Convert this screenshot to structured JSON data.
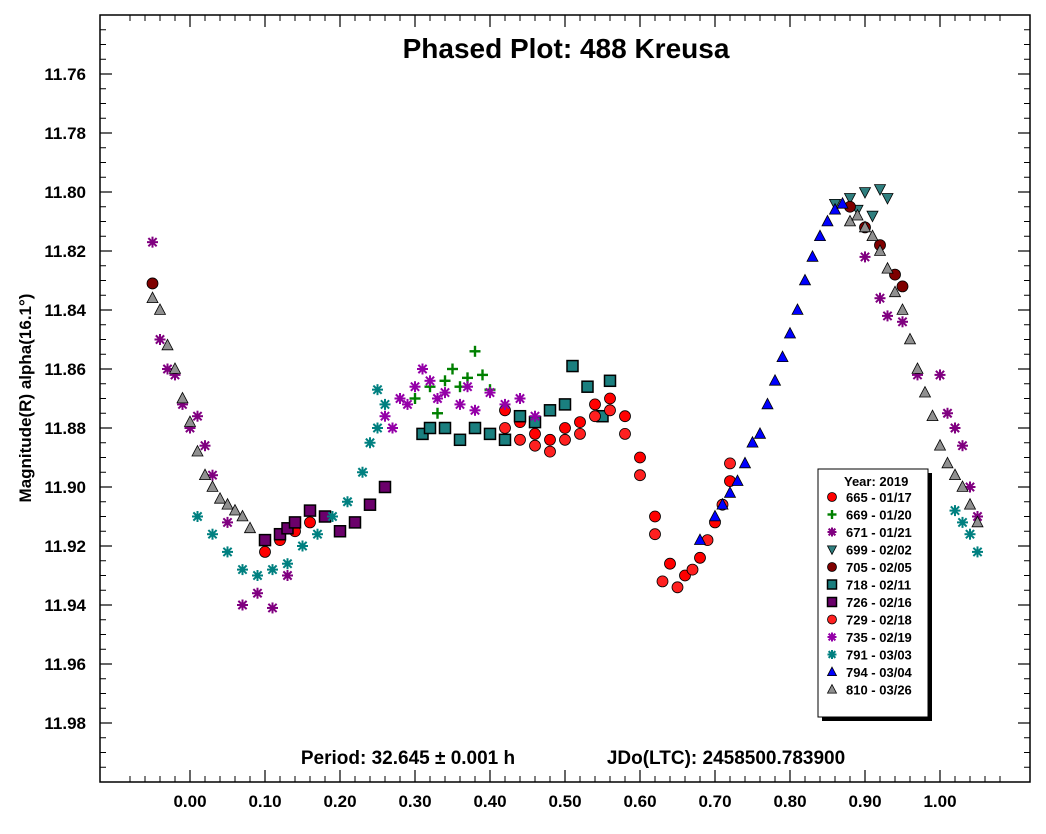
{
  "chart_data": {
    "type": "scatter",
    "title": "Phased Plot: 488 Kreusa",
    "xlabel": "",
    "ylabel": "Magnitude(R) alpha(16.1°)",
    "xlim": [
      -0.12,
      1.12
    ],
    "ylim": [
      11.74,
      12.0
    ],
    "y_inverted": true,
    "x_ticks": [
      "0.00",
      "0.10",
      "0.20",
      "0.30",
      "0.40",
      "0.50",
      "0.60",
      "0.70",
      "0.80",
      "0.90",
      "1.00"
    ],
    "y_ticks": [
      "11.76",
      "11.78",
      "11.80",
      "11.82",
      "11.84",
      "11.86",
      "11.88",
      "11.90",
      "11.92",
      "11.94",
      "11.96",
      "11.98"
    ],
    "grid": false,
    "legend_position": "bottom-right",
    "legend_title": "Year: 2019",
    "footer": {
      "period": "Period: 32.645 ± 0.001 h",
      "epoch": "JDo(LTC): 2458500.783900"
    },
    "series": [
      {
        "name": "665 - 01/17",
        "marker": "circle",
        "color": "#ff0000",
        "points": [
          [
            0.1,
            11.922
          ],
          [
            0.12,
            11.918
          ],
          [
            0.14,
            11.915
          ],
          [
            0.16,
            11.912
          ],
          [
            0.42,
            11.874
          ],
          [
            0.44,
            11.878
          ],
          [
            0.46,
            11.882
          ],
          [
            0.48,
            11.884
          ],
          [
            0.5,
            11.88
          ],
          [
            0.52,
            11.878
          ],
          [
            0.54,
            11.872
          ],
          [
            0.56,
            11.87
          ],
          [
            0.58,
            11.876
          ],
          [
            0.6,
            11.89
          ],
          [
            0.62,
            11.91
          ],
          [
            0.64,
            11.926
          ],
          [
            0.66,
            11.93
          ],
          [
            0.68,
            11.924
          ],
          [
            0.7,
            11.912
          ],
          [
            0.72,
            11.898
          ]
        ]
      },
      {
        "name": "669 - 01/20",
        "marker": "plus",
        "color": "#008000",
        "points": [
          [
            0.3,
            11.87
          ],
          [
            0.32,
            11.866
          ],
          [
            0.34,
            11.864
          ],
          [
            0.35,
            11.86
          ],
          [
            0.36,
            11.866
          ],
          [
            0.37,
            11.863
          ],
          [
            0.38,
            11.854
          ],
          [
            0.39,
            11.862
          ],
          [
            0.4,
            11.867
          ],
          [
            0.33,
            11.875
          ]
        ]
      },
      {
        "name": "671 - 01/21",
        "marker": "asterisk",
        "color": "#800080",
        "points": [
          [
            -0.05,
            11.817
          ],
          [
            -0.04,
            11.85
          ],
          [
            -0.03,
            11.86
          ],
          [
            -0.02,
            11.862
          ],
          [
            -0.01,
            11.872
          ],
          [
            0.0,
            11.88
          ],
          [
            0.01,
            11.876
          ],
          [
            0.02,
            11.886
          ],
          [
            0.03,
            11.896
          ],
          [
            0.05,
            11.912
          ],
          [
            0.07,
            11.94
          ],
          [
            0.09,
            11.936
          ],
          [
            0.11,
            11.941
          ],
          [
            0.13,
            11.93
          ],
          [
            0.9,
            11.822
          ],
          [
            0.92,
            11.836
          ],
          [
            0.93,
            11.842
          ],
          [
            0.95,
            11.844
          ],
          [
            0.97,
            11.862
          ],
          [
            1.0,
            11.862
          ],
          [
            1.01,
            11.875
          ],
          [
            1.02,
            11.88
          ],
          [
            1.03,
            11.886
          ],
          [
            1.04,
            11.9
          ],
          [
            1.05,
            11.91
          ]
        ]
      },
      {
        "name": "699 - 02/02",
        "marker": "tri-down",
        "color": "#2f7f7f",
        "points": [
          [
            0.86,
            11.804
          ],
          [
            0.88,
            11.802
          ],
          [
            0.9,
            11.8
          ],
          [
            0.92,
            11.799
          ],
          [
            0.93,
            11.802
          ],
          [
            0.91,
            11.808
          ],
          [
            0.89,
            11.806
          ]
        ]
      },
      {
        "name": "705 - 02/05",
        "marker": "circle",
        "color": "#7f0000",
        "points": [
          [
            -0.05,
            11.831
          ],
          [
            0.88,
            11.805
          ],
          [
            0.9,
            11.812
          ],
          [
            0.92,
            11.818
          ],
          [
            0.94,
            11.828
          ],
          [
            0.95,
            11.832
          ]
        ]
      },
      {
        "name": "718 - 02/11",
        "marker": "square",
        "color": "#1a7f7f",
        "points": [
          [
            0.31,
            11.882
          ],
          [
            0.32,
            11.88
          ],
          [
            0.34,
            11.88
          ],
          [
            0.36,
            11.884
          ],
          [
            0.38,
            11.88
          ],
          [
            0.4,
            11.882
          ],
          [
            0.42,
            11.884
          ],
          [
            0.44,
            11.876
          ],
          [
            0.46,
            11.878
          ],
          [
            0.48,
            11.874
          ],
          [
            0.5,
            11.872
          ],
          [
            0.51,
            11.859
          ],
          [
            0.53,
            11.866
          ],
          [
            0.55,
            11.876
          ],
          [
            0.56,
            11.864
          ]
        ]
      },
      {
        "name": "726 - 02/16",
        "marker": "square",
        "color": "#6b006b",
        "points": [
          [
            0.1,
            11.918
          ],
          [
            0.12,
            11.916
          ],
          [
            0.13,
            11.914
          ],
          [
            0.14,
            11.912
          ],
          [
            0.16,
            11.908
          ],
          [
            0.18,
            11.91
          ],
          [
            0.2,
            11.915
          ],
          [
            0.22,
            11.912
          ],
          [
            0.24,
            11.906
          ],
          [
            0.26,
            11.9
          ]
        ]
      },
      {
        "name": "729 - 02/18",
        "marker": "circle",
        "color": "#ff2020",
        "points": [
          [
            0.42,
            11.88
          ],
          [
            0.44,
            11.884
          ],
          [
            0.46,
            11.886
          ],
          [
            0.48,
            11.888
          ],
          [
            0.5,
            11.884
          ],
          [
            0.52,
            11.882
          ],
          [
            0.54,
            11.876
          ],
          [
            0.56,
            11.874
          ],
          [
            0.58,
            11.882
          ],
          [
            0.6,
            11.896
          ],
          [
            0.62,
            11.916
          ],
          [
            0.63,
            11.932
          ],
          [
            0.65,
            11.934
          ],
          [
            0.67,
            11.928
          ],
          [
            0.69,
            11.918
          ],
          [
            0.71,
            11.906
          ],
          [
            0.72,
            11.892
          ]
        ]
      },
      {
        "name": "735 - 02/19",
        "marker": "asterisk",
        "color": "#9400a8",
        "points": [
          [
            0.26,
            11.876
          ],
          [
            0.28,
            11.87
          ],
          [
            0.3,
            11.866
          ],
          [
            0.31,
            11.86
          ],
          [
            0.32,
            11.864
          ],
          [
            0.34,
            11.868
          ],
          [
            0.36,
            11.872
          ],
          [
            0.38,
            11.874
          ],
          [
            0.4,
            11.868
          ],
          [
            0.42,
            11.872
          ],
          [
            0.44,
            11.87
          ],
          [
            0.46,
            11.876
          ],
          [
            0.27,
            11.88
          ],
          [
            0.29,
            11.872
          ],
          [
            0.33,
            11.87
          ],
          [
            0.37,
            11.866
          ]
        ]
      },
      {
        "name": "791 - 03/03",
        "marker": "asterisk",
        "color": "#008080",
        "points": [
          [
            0.01,
            11.91
          ],
          [
            0.03,
            11.916
          ],
          [
            0.05,
            11.922
          ],
          [
            0.07,
            11.928
          ],
          [
            0.09,
            11.93
          ],
          [
            0.11,
            11.928
          ],
          [
            0.13,
            11.926
          ],
          [
            0.15,
            11.92
          ],
          [
            0.17,
            11.916
          ],
          [
            0.19,
            11.91
          ],
          [
            0.21,
            11.905
          ],
          [
            0.23,
            11.895
          ],
          [
            0.24,
            11.885
          ],
          [
            0.25,
            11.88
          ],
          [
            0.26,
            11.872
          ],
          [
            0.25,
            11.867
          ],
          [
            1.02,
            11.908
          ],
          [
            1.03,
            11.912
          ],
          [
            1.04,
            11.916
          ],
          [
            1.05,
            11.922
          ]
        ]
      },
      {
        "name": "794 - 03/04",
        "marker": "tri-up",
        "color": "#0000ff",
        "points": [
          [
            0.68,
            11.918
          ],
          [
            0.7,
            11.91
          ],
          [
            0.72,
            11.902
          ],
          [
            0.74,
            11.892
          ],
          [
            0.76,
            11.882
          ],
          [
            0.77,
            11.872
          ],
          [
            0.78,
            11.864
          ],
          [
            0.79,
            11.856
          ],
          [
            0.8,
            11.848
          ],
          [
            0.81,
            11.84
          ],
          [
            0.82,
            11.83
          ],
          [
            0.83,
            11.822
          ],
          [
            0.84,
            11.815
          ],
          [
            0.85,
            11.81
          ],
          [
            0.86,
            11.806
          ],
          [
            0.87,
            11.804
          ],
          [
            0.75,
            11.885
          ],
          [
            0.73,
            11.898
          ],
          [
            0.71,
            11.906
          ]
        ]
      },
      {
        "name": "810 - 03/26",
        "marker": "tri-up",
        "color": "#909090",
        "points": [
          [
            -0.05,
            11.836
          ],
          [
            -0.04,
            11.84
          ],
          [
            -0.03,
            11.852
          ],
          [
            -0.02,
            11.86
          ],
          [
            -0.01,
            11.87
          ],
          [
            0.0,
            11.878
          ],
          [
            0.01,
            11.888
          ],
          [
            0.02,
            11.896
          ],
          [
            0.03,
            11.9
          ],
          [
            0.04,
            11.904
          ],
          [
            0.05,
            11.906
          ],
          [
            0.06,
            11.908
          ],
          [
            0.07,
            11.91
          ],
          [
            0.08,
            11.914
          ],
          [
            0.88,
            11.81
          ],
          [
            0.89,
            11.808
          ],
          [
            0.9,
            11.812
          ],
          [
            0.91,
            11.815
          ],
          [
            0.92,
            11.82
          ],
          [
            0.93,
            11.826
          ],
          [
            0.94,
            11.834
          ],
          [
            0.95,
            11.84
          ],
          [
            0.96,
            11.85
          ],
          [
            0.97,
            11.86
          ],
          [
            0.98,
            11.868
          ],
          [
            0.99,
            11.876
          ],
          [
            1.0,
            11.886
          ],
          [
            1.01,
            11.892
          ],
          [
            1.02,
            11.896
          ],
          [
            1.03,
            11.9
          ],
          [
            1.04,
            11.906
          ],
          [
            1.05,
            11.912
          ]
        ]
      }
    ]
  }
}
